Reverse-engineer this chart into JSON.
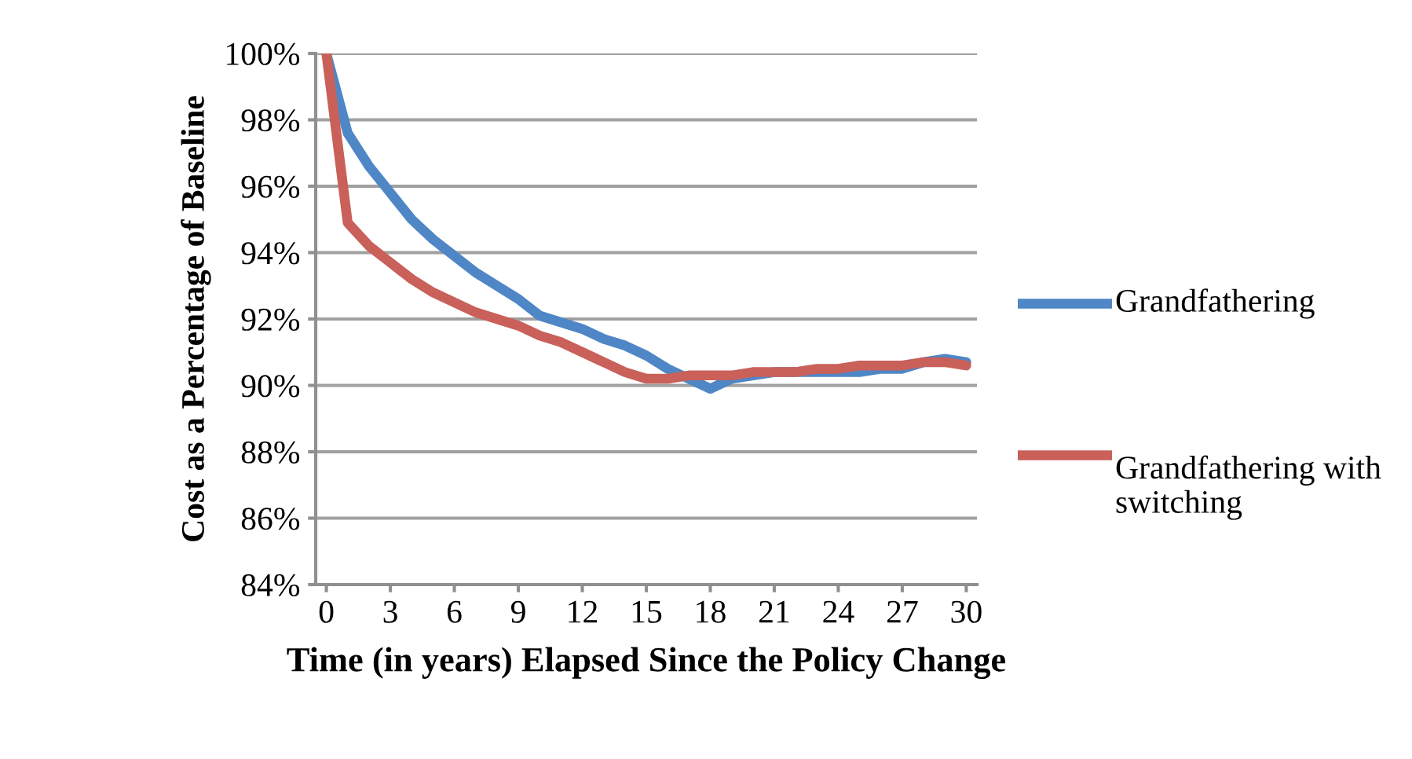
{
  "chart_data": {
    "type": "line",
    "xlabel": "Time (in years) Elapsed Since the Policy Change",
    "ylabel": "Cost as a Percentage of Baseline",
    "x": [
      0,
      1,
      2,
      3,
      4,
      5,
      6,
      7,
      8,
      9,
      10,
      11,
      12,
      13,
      14,
      15,
      16,
      17,
      18,
      19,
      20,
      21,
      22,
      23,
      24,
      25,
      26,
      27,
      28,
      29,
      30
    ],
    "series": [
      {
        "name": "Grandfathering",
        "color": "#4f86c6",
        "values": [
          100,
          97.6,
          96.6,
          95.8,
          95.0,
          94.4,
          93.9,
          93.4,
          93.0,
          92.6,
          92.1,
          91.9,
          91.7,
          91.4,
          91.2,
          90.9,
          90.5,
          90.2,
          89.9,
          90.2,
          90.3,
          90.4,
          90.4,
          90.4,
          90.4,
          90.4,
          90.5,
          90.5,
          90.7,
          90.8,
          90.7
        ]
      },
      {
        "name": "Grandfathering with switching",
        "color": "#c9605a",
        "values": [
          100,
          94.9,
          94.2,
          93.7,
          93.2,
          92.8,
          92.5,
          92.2,
          92.0,
          91.8,
          91.5,
          91.3,
          91.0,
          90.7,
          90.4,
          90.2,
          90.2,
          90.3,
          90.3,
          90.3,
          90.4,
          90.4,
          90.4,
          90.5,
          90.5,
          90.6,
          90.6,
          90.6,
          90.7,
          90.7,
          90.6
        ]
      }
    ],
    "xlim": [
      -0.5,
      30.5
    ],
    "xticks": [
      0,
      3,
      6,
      9,
      12,
      15,
      18,
      21,
      24,
      27,
      30
    ],
    "ylim": [
      84,
      100
    ],
    "yticks": [
      {
        "value": 84,
        "label": "84%"
      },
      {
        "value": 86,
        "label": "86%"
      },
      {
        "value": 88,
        "label": "88%"
      },
      {
        "value": 90,
        "label": "90%"
      },
      {
        "value": 92,
        "label": "92%"
      },
      {
        "value": 94,
        "label": "94%"
      },
      {
        "value": 96,
        "label": "96%"
      },
      {
        "value": 98,
        "label": "98%"
      },
      {
        "value": 100,
        "label": "100%"
      }
    ],
    "grid": "y",
    "legend": "right",
    "marker": "none",
    "line_style": "solid"
  }
}
